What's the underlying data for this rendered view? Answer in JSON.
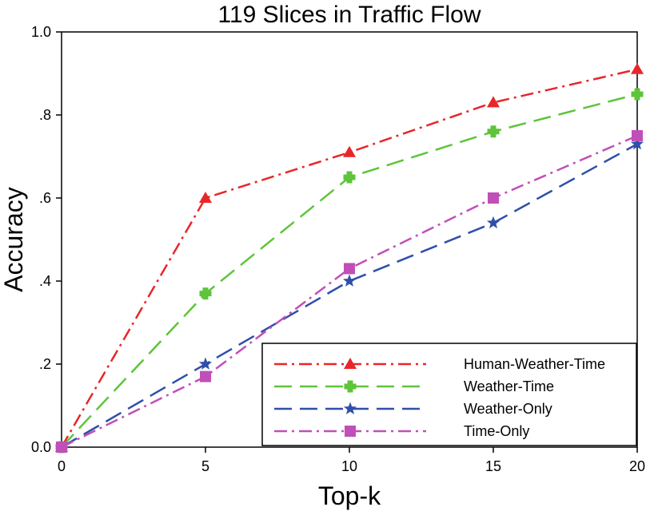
{
  "chart_data": {
    "type": "line",
    "title": "119 Slices in Traffic Flow",
    "xlabel": "Top-k",
    "ylabel": "Accuracy",
    "x": [
      0,
      5,
      10,
      15,
      20
    ],
    "xticks": [
      "0",
      "5",
      "10",
      "15",
      "20"
    ],
    "yticks": [
      {
        "value": 0.0,
        "label": "0.0"
      },
      {
        "value": 0.2,
        "label": ".2"
      },
      {
        "value": 0.4,
        "label": ".4"
      },
      {
        "value": 0.6,
        "label": ".6"
      },
      {
        "value": 0.8,
        "label": ".8"
      },
      {
        "value": 1.0,
        "label": "1.0"
      }
    ],
    "xlim": [
      0,
      20
    ],
    "ylim": [
      0,
      1.0
    ],
    "grid": false,
    "legend_position": "bottom-right",
    "series": [
      {
        "name": "Human-Weather-Time",
        "values": [
          0.0,
          0.6,
          0.71,
          0.83,
          0.91
        ],
        "color": "#e8262a",
        "marker": "triangle",
        "dash": "dash-dot"
      },
      {
        "name": "Weather-Time",
        "values": [
          0.0,
          0.37,
          0.65,
          0.76,
          0.85
        ],
        "color": "#5ec43a",
        "marker": "plus",
        "dash": "dash"
      },
      {
        "name": "Weather-Only",
        "values": [
          0.0,
          0.2,
          0.4,
          0.54,
          0.73
        ],
        "color": "#2f4faa",
        "marker": "star",
        "dash": "dash"
      },
      {
        "name": "Time-Only",
        "values": [
          0.0,
          0.17,
          0.43,
          0.6,
          0.75
        ],
        "color": "#c04fb8",
        "marker": "square",
        "dash": "dash-dot"
      }
    ]
  }
}
